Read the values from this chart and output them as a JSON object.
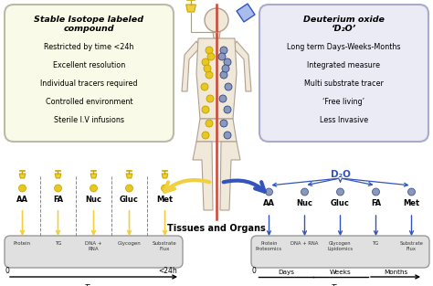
{
  "bg_color": "#ffffff",
  "left_box": {
    "title_line1": "Stable Isotope labeled",
    "title_line2": "compound",
    "bullets": [
      "Restricted by time <24h",
      "Excellent resolution",
      "Individual tracers required",
      "Controlled environment",
      "Sterile I.V infusions"
    ],
    "box_color": "#fafae8",
    "border_color": "#bbbbaa"
  },
  "right_box": {
    "title_line1": "Deuterium oxide",
    "title_line2": "‘D₂O’",
    "bullets": [
      "Long term Days-Weeks-Months",
      "Integrated measure",
      "Multi substrate tracer",
      "‘Free living’",
      "Less Invasive"
    ],
    "box_color": "#ebebf5",
    "border_color": "#aaaacc"
  },
  "left_tracers": [
    "AA",
    "FA",
    "Nuc",
    "Gluc",
    "Met"
  ],
  "left_substrates": [
    "Protein",
    "TG",
    "DNA +\nRNA",
    "Glycogen",
    "Substrate\nFlux"
  ],
  "right_tracers": [
    "AA",
    "Nuc",
    "Gluc",
    "FA",
    "Met"
  ],
  "right_substrates": [
    "Protein\nProteomics",
    "DNA + RNA",
    "Glycogen\nLipidomics",
    "TG",
    "Substrate\nFlux"
  ],
  "yellow": "#f0d040",
  "yellow_dark": "#c8a800",
  "blue": "#3355bb",
  "blue_light": "#7788cc",
  "gray_box": "#e0e0e0",
  "gray_border": "#999999",
  "body_fill": "#f0e8d8",
  "body_stroke": "#b0a090",
  "red_line": "#cc4433",
  "dot_yellow": "#e8c820",
  "dot_yellow_ring": "#c0a000",
  "dot_blue": "#8899bb",
  "dot_blue_ring": "#334488"
}
